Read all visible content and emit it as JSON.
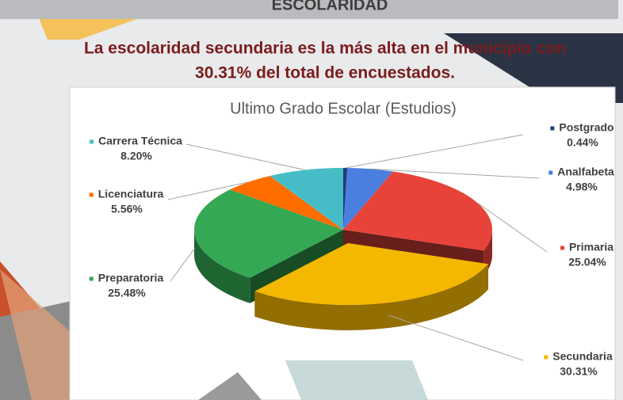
{
  "header": {
    "title": "ESCOLARIDAD"
  },
  "headline": [
    "La escolaridad secundaria  es la más alta en el municipio con",
    "30.31%  del total de encuestados."
  ],
  "chart_data": {
    "type": "pie",
    "three_d": true,
    "title": "Ultimo Grado Escolar (Estudios)",
    "categories": [
      "Postgrado",
      "Analfabeta",
      "Primaria",
      "Secundaria",
      "Preparatoria",
      "Licenciatura",
      "Carrera Técnica"
    ],
    "values": [
      0.44,
      4.98,
      25.04,
      30.31,
      25.48,
      5.56,
      8.2
    ],
    "value_labels": [
      "0.44%",
      "4.98%",
      "25.04%",
      "30.31%",
      "25.48%",
      "5.56%",
      "8.20%"
    ],
    "colors": [
      "#1f3d7a",
      "#4a7fe0",
      "#e8433a",
      "#f5b800",
      "#34a853",
      "#ff6d01",
      "#46bdc6"
    ],
    "exploded_slice": "Secundaria"
  }
}
